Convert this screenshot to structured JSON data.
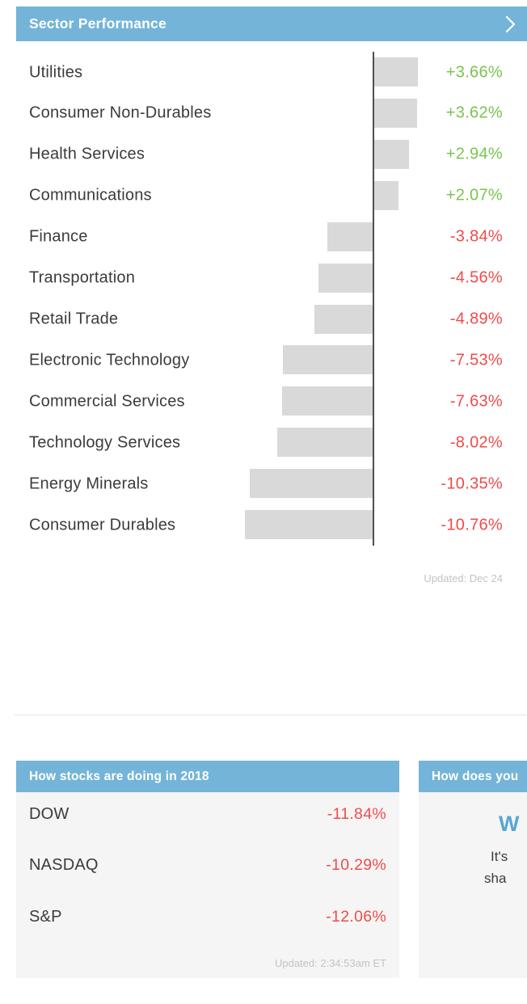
{
  "colors": {
    "header_blue": "#74b4d8",
    "positive_green": "#79c350",
    "negative_red": "#f04b4b",
    "bar_gray": "#d9d9d9",
    "axis_gray": "#4f4f4f",
    "text_dark": "#3b3b3b",
    "muted_gray": "#c3c3c3",
    "card_body_bg": "#f5f5f5"
  },
  "sector_card": {
    "title": "Sector Performance",
    "updated": "Updated: Dec 24"
  },
  "chart_data": {
    "type": "bar",
    "orientation": "horizontal",
    "title": "Sector Performance",
    "xlabel": "",
    "ylabel": "",
    "xlim": [
      -11,
      4
    ],
    "baseline": 0,
    "grid": false,
    "legend": "none",
    "categories": [
      "Utilities",
      "Consumer Non-Durables",
      "Health Services",
      "Communications",
      "Finance",
      "Transportation",
      "Retail Trade",
      "Electronic Technology",
      "Commercial Services",
      "Technology Services",
      "Energy Minerals",
      "Consumer Durables"
    ],
    "values": [
      3.66,
      3.62,
      2.94,
      2.07,
      -3.84,
      -4.56,
      -4.89,
      -7.53,
      -7.63,
      -8.02,
      -10.35,
      -10.76
    ],
    "display_values": [
      "+3.66%",
      "+3.62%",
      "+2.94%",
      "+2.07%",
      "-3.84%",
      "-4.56%",
      "-4.89%",
      "-7.53%",
      "-7.63%",
      "-8.02%",
      "-10.35%",
      "-10.76%"
    ]
  },
  "stocks_card": {
    "title": "How stocks are doing in 2018",
    "rows": [
      {
        "label": "DOW",
        "value": "-11.84%"
      },
      {
        "label": "NASDAQ",
        "value": "-10.29%"
      },
      {
        "label": "S&P",
        "value": "-12.06%"
      }
    ],
    "updated": "Updated: 2:34:53am ET"
  },
  "portfolio_card": {
    "title": "How does you",
    "headline_fragment": "W",
    "body_line1_fragment": "It's",
    "body_line2_fragment": "sha"
  }
}
